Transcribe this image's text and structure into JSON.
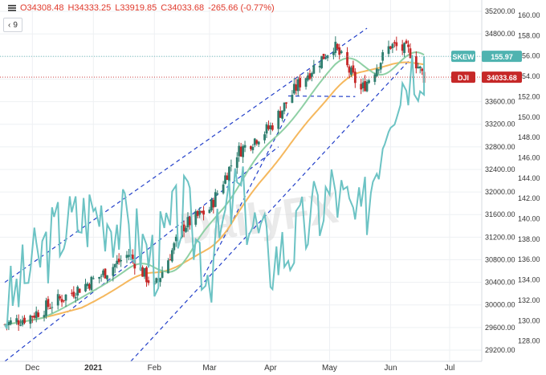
{
  "legend": {
    "open": "O34308.48",
    "high": "H34333.25",
    "low": "L33919.85",
    "close": "C34033.68",
    "change": "-265.66 (-0.77%)",
    "collapse_chevron": "‹",
    "indicator_count": "9"
  },
  "colors": {
    "up": "#26a69a",
    "down": "#c62828",
    "price_candle": "#2e7d6e",
    "skew_line": "#6cc3c4",
    "ma_fast": "#8fd0a5",
    "ma_slow": "#f5b85e",
    "trendline": "#2340c9",
    "dji_badge": "#c62828",
    "skew_badge": "#4fb3b0"
  },
  "badges": {
    "skew": {
      "label": "SKEW",
      "value": "155.97"
    },
    "dji": {
      "label": "DJI",
      "value": "34033.68"
    }
  },
  "watermark": "DailyFX",
  "chart_data": {
    "type": "line",
    "title": "",
    "x": [
      "2020-11-17",
      "2020-11-30",
      "2020-12-15",
      "2021-01-04",
      "2021-01-19",
      "2021-02-01",
      "2021-02-16",
      "2021-03-01",
      "2021-03-15",
      "2021-04-01",
      "2021-04-15",
      "2021-05-03",
      "2021-05-17",
      "2021-06-01",
      "2021-06-11",
      "2021-06-18"
    ],
    "x_ticks": [
      "Dec",
      "2021",
      "Feb",
      "Mar",
      "Apr",
      "May",
      "Jun",
      "Jul"
    ],
    "ylim_left": [
      29000,
      35400
    ],
    "y_ticks_left": [
      35200,
      34800,
      34400,
      34000,
      33600,
      33200,
      32800,
      32400,
      32000,
      31600,
      31200,
      30800,
      30400,
      30000,
      29600,
      29200
    ],
    "ylim_right": [
      126,
      161.5
    ],
    "y_ticks_right": [
      160,
      158,
      156,
      154,
      152,
      150,
      148,
      146,
      144,
      142,
      140,
      138,
      136,
      134,
      132,
      130,
      128
    ],
    "series": [
      {
        "name": "DJI",
        "axis": "left",
        "values": [
          29650,
          29800,
          30100,
          30500,
          30900,
          30300,
          31400,
          31700,
          32700,
          33150,
          33900,
          34600,
          33800,
          34600,
          34480,
          34033.68
        ]
      },
      {
        "name": "SKEW",
        "axis": "right",
        "values": [
          131,
          135,
          139,
          141,
          139,
          136,
          141,
          135,
          143,
          136,
          138,
          143,
          139,
          152,
          155,
          155.97
        ]
      }
    ]
  }
}
